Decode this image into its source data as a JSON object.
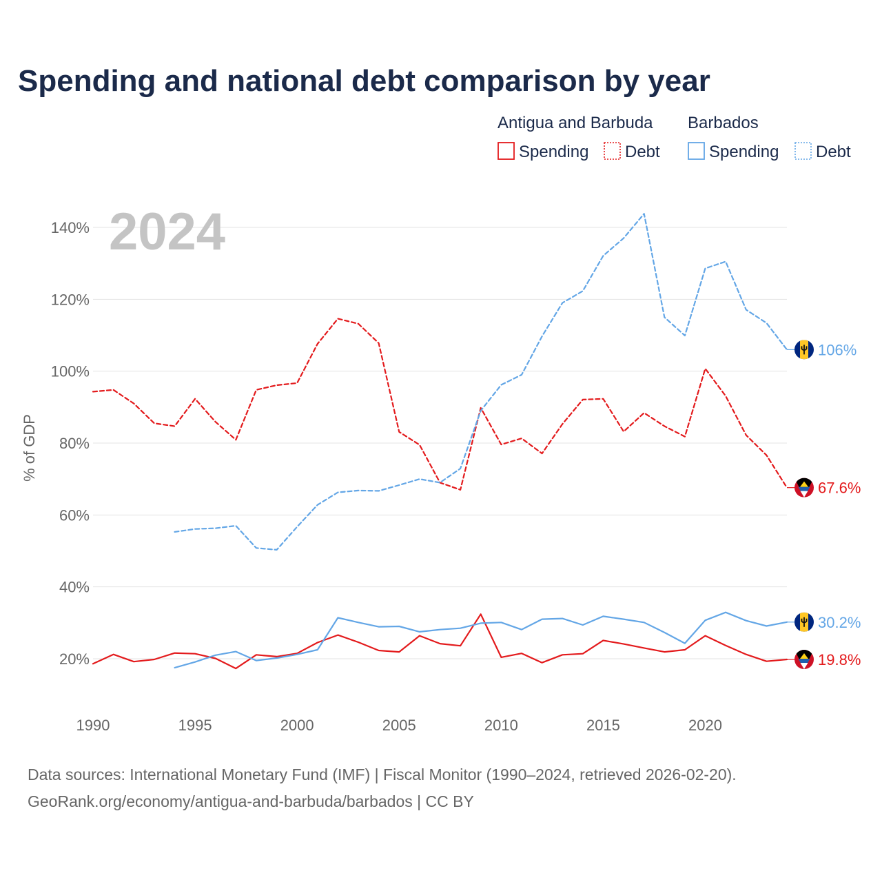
{
  "chart_data": {
    "type": "line",
    "title": "Spending and national debt comparison by year",
    "watermark_year": "2024",
    "ylabel": "% of GDP",
    "xlabel": "",
    "xlim": [
      1990,
      2024
    ],
    "ylim": [
      10,
      150
    ],
    "x_ticks": [
      1990,
      1995,
      2000,
      2005,
      2010,
      2015,
      2020
    ],
    "y_ticks": [
      20,
      40,
      60,
      80,
      100,
      120,
      140
    ],
    "y_tick_labels": [
      "20%",
      "40%",
      "60%",
      "80%",
      "100%",
      "120%",
      "140%"
    ],
    "grid": true,
    "legend": {
      "placement": "top-right",
      "groups": [
        {
          "country": "Antigua and Barbuda",
          "color": "#e31a1c",
          "items": [
            "Spending",
            "Debt"
          ]
        },
        {
          "country": "Barbados",
          "color": "#63a6e6",
          "items": [
            "Spending",
            "Debt"
          ]
        }
      ]
    },
    "series": [
      {
        "name": "Antigua and Barbuda Debt",
        "country": "Antigua and Barbuda",
        "metric": "Debt",
        "color": "#e31a1c",
        "style": "dashed",
        "x": [
          1990,
          1991,
          1992,
          1993,
          1994,
          1995,
          1996,
          1997,
          1998,
          1999,
          2000,
          2001,
          2002,
          2003,
          2004,
          2005,
          2006,
          2007,
          2008,
          2009,
          2010,
          2011,
          2012,
          2013,
          2014,
          2015,
          2016,
          2017,
          2018,
          2019,
          2020,
          2021,
          2022,
          2023,
          2024
        ],
        "values": [
          94.3,
          94.8,
          91.0,
          85.5,
          84.7,
          92.3,
          85.9,
          80.9,
          94.8,
          96.1,
          96.7,
          107.6,
          114.6,
          113.2,
          107.8,
          83.1,
          79.5,
          69.0,
          67.0,
          89.8,
          79.6,
          81.3,
          77.1,
          85.3,
          92.1,
          92.3,
          83.2,
          88.4,
          84.7,
          81.8,
          100.7,
          93.1,
          82.2,
          76.6,
          67.6
        ],
        "end_label": "67.6%"
      },
      {
        "name": "Barbados Debt",
        "country": "Barbados",
        "metric": "Debt",
        "color": "#63a6e6",
        "style": "dashed",
        "x": [
          1994,
          1995,
          1996,
          1997,
          1998,
          1999,
          2000,
          2001,
          2002,
          2003,
          2004,
          2005,
          2006,
          2007,
          2008,
          2009,
          2010,
          2011,
          2012,
          2013,
          2014,
          2015,
          2016,
          2017,
          2018,
          2019,
          2020,
          2021,
          2022,
          2023,
          2024
        ],
        "values": [
          55.3,
          56.1,
          56.3,
          57.0,
          50.8,
          50.3,
          56.7,
          62.8,
          66.3,
          66.8,
          66.7,
          68.3,
          70.0,
          69.0,
          72.9,
          89.0,
          96.2,
          99.0,
          109.7,
          119.0,
          122.3,
          132.1,
          137.0,
          143.8,
          115.0,
          109.9,
          128.6,
          130.5,
          117.1,
          113.4,
          106.0
        ],
        "end_label": "106%"
      },
      {
        "name": "Antigua and Barbuda Spending",
        "country": "Antigua and Barbuda",
        "metric": "Spending",
        "color": "#e31a1c",
        "style": "solid",
        "x": [
          1990,
          1991,
          1992,
          1993,
          1994,
          1995,
          1996,
          1997,
          1998,
          1999,
          2000,
          2001,
          2002,
          2003,
          2004,
          2005,
          2006,
          2007,
          2008,
          2009,
          2010,
          2011,
          2012,
          2013,
          2014,
          2015,
          2016,
          2017,
          2018,
          2019,
          2020,
          2021,
          2022,
          2023,
          2024
        ],
        "values": [
          18.6,
          21.2,
          19.2,
          19.8,
          21.6,
          21.4,
          20.1,
          17.3,
          21.1,
          20.6,
          21.5,
          24.5,
          26.6,
          24.6,
          22.3,
          21.9,
          26.4,
          24.2,
          23.6,
          32.4,
          20.4,
          21.5,
          18.9,
          21.1,
          21.4,
          25.1,
          24.1,
          23.0,
          21.9,
          22.5,
          26.4,
          23.7,
          21.2,
          19.3,
          19.8
        ],
        "end_label": "19.8%"
      },
      {
        "name": "Barbados Spending",
        "country": "Barbados",
        "metric": "Spending",
        "color": "#63a6e6",
        "style": "solid",
        "x": [
          1994,
          1995,
          1996,
          1997,
          1998,
          1999,
          2000,
          2001,
          2002,
          2003,
          2004,
          2005,
          2006,
          2007,
          2008,
          2009,
          2010,
          2011,
          2012,
          2013,
          2014,
          2015,
          2016,
          2017,
          2018,
          2019,
          2020,
          2021,
          2022,
          2023,
          2024
        ],
        "values": [
          17.5,
          19.1,
          21.0,
          22.0,
          19.5,
          20.2,
          21.2,
          22.5,
          31.4,
          30.1,
          28.9,
          29.0,
          27.5,
          28.1,
          28.5,
          29.9,
          30.1,
          28.1,
          31.0,
          31.2,
          29.4,
          31.8,
          31.0,
          30.1,
          27.3,
          24.3,
          30.7,
          32.9,
          30.6,
          29.1,
          30.2
        ],
        "end_label": "30.2%"
      }
    ]
  },
  "source": {
    "line1": "Data sources: International Monetary Fund (IMF) | Fiscal Monitor (1990–2024, retrieved 2026-02-20).",
    "line2": "GeoRank.org/economy/antigua-and-barbuda/barbados | CC BY"
  }
}
